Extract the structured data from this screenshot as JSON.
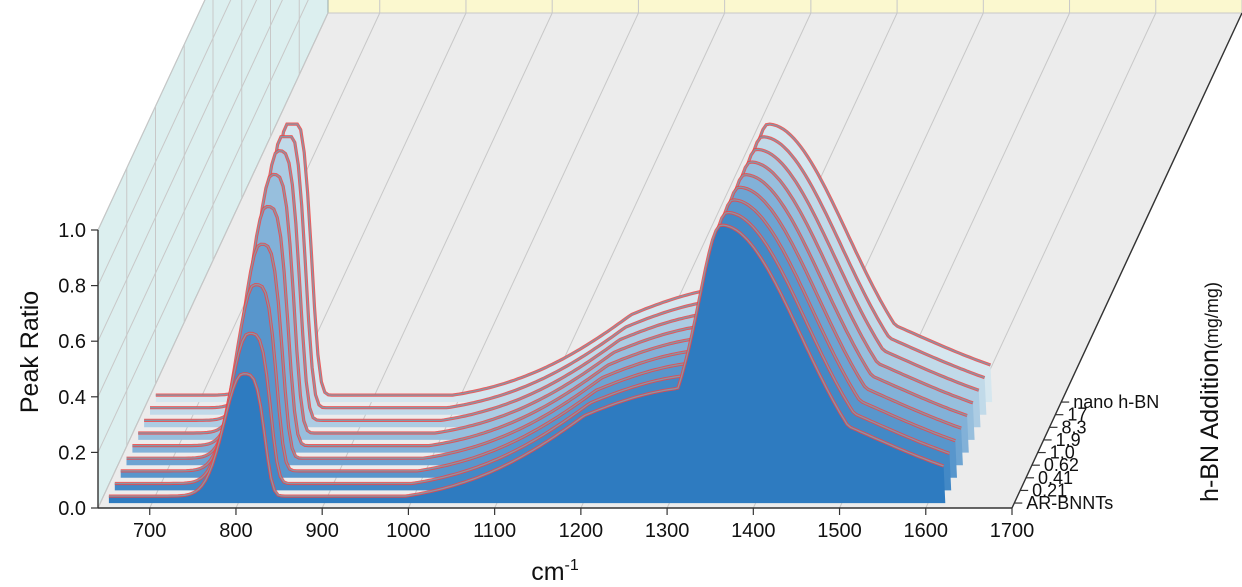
{
  "chart_data": {
    "type": "area",
    "style": "3d-waterfall",
    "xlabel": "cm",
    "xlabel_superscript": "-1",
    "ylabel": "Peak Ratio",
    "zlabel_main": "h-BN Addition",
    "zlabel_unit": "(mg/mg)",
    "xlim": [
      640,
      1700
    ],
    "ylim": [
      0.0,
      1.0
    ],
    "x_ticks": [
      "700",
      "800",
      "900",
      "1000",
      "1100",
      "1200",
      "1300",
      "1400",
      "1500",
      "1600",
      "1700"
    ],
    "y_ticks": [
      "0.0",
      "0.2",
      "0.4",
      "0.6",
      "0.8",
      "1.0"
    ],
    "grid": true,
    "colors": {
      "back_wall": "#fbf8cf",
      "side_wall": "#dcefef",
      "floor": "#ececec",
      "front_series": "#2e7bc0",
      "back_series": "#d6e7ef",
      "error_band": "#ee4444",
      "outline": "#8896a6"
    },
    "series": [
      {
        "name": "AR-BNNTs",
        "peak1": 0.44,
        "peak2": 1.0
      },
      {
        "name": "0.21",
        "peak1": 0.54,
        "peak2": 1.0
      },
      {
        "name": "0.41",
        "peak1": 0.67,
        "peak2": 1.0
      },
      {
        "name": "0.62",
        "peak1": 0.77,
        "peak2": 1.0
      },
      {
        "name": "1.0",
        "peak1": 0.86,
        "peak2": 1.0
      },
      {
        "name": "1.9",
        "peak1": 0.93,
        "peak2": 1.0
      },
      {
        "name": "8.3",
        "peak1": 0.97,
        "peak2": 1.0
      },
      {
        "name": "17",
        "peak1": 1.0,
        "peak2": 1.0
      },
      {
        "name": "nano h-BN",
        "peak1": 1.0,
        "peak2": 1.0
      }
    ],
    "peak_positions_cm": [
      805,
      1360
    ]
  }
}
